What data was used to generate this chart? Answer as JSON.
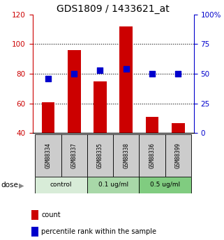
{
  "title": "GDS1809 / 1433621_at",
  "samples": [
    "GSM88334",
    "GSM88337",
    "GSM88335",
    "GSM88338",
    "GSM88336",
    "GSM88399"
  ],
  "bar_values": [
    61,
    96,
    75,
    112,
    51,
    47
  ],
  "dot_values": [
    46,
    50,
    53,
    54,
    50,
    50
  ],
  "bar_color": "#cc0000",
  "dot_color": "#0000cc",
  "left_ylim": [
    40,
    120
  ],
  "right_ylim": [
    0,
    100
  ],
  "left_yticks": [
    40,
    60,
    80,
    100,
    120
  ],
  "right_yticks": [
    0,
    25,
    50,
    75,
    100
  ],
  "right_yticklabels": [
    "0",
    "25",
    "50",
    "75",
    "100%"
  ],
  "dotted_gridlines": [
    60,
    80,
    100
  ],
  "bar_width": 0.5,
  "groups": [
    {
      "label": "control",
      "start": 0,
      "end": 2,
      "color": "#d8ecd8"
    },
    {
      "label": "0.1 ug/ml",
      "start": 2,
      "end": 4,
      "color": "#a8d8a8"
    },
    {
      "label": "0.5 ug/ml",
      "start": 4,
      "end": 6,
      "color": "#80cc80"
    }
  ],
  "sample_box_color": "#cccccc",
  "dose_label": "dose",
  "legend_count": "count",
  "legend_pct": "percentile rank within the sample"
}
